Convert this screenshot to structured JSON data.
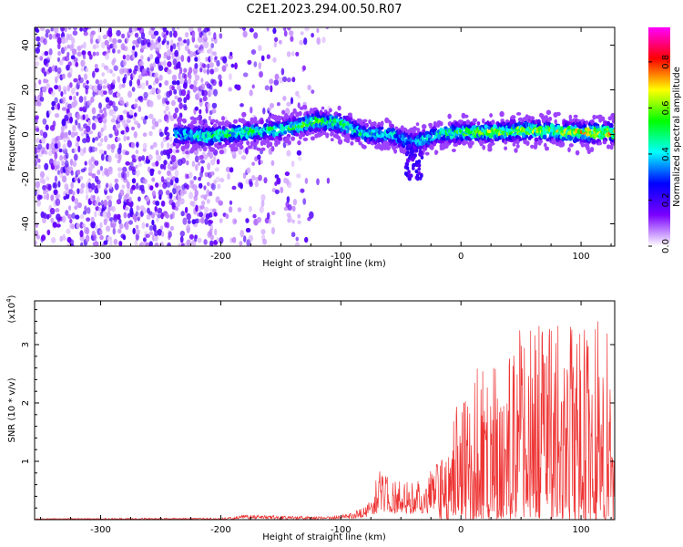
{
  "title": "C2E1.2023.294.00.50.R07",
  "chart_data": [
    {
      "type": "heatmap",
      "xlabel": "Height of straight line (km)",
      "ylabel": "Frequency (Hz)",
      "xlim": [
        -355,
        128
      ],
      "ylim": [
        -50,
        48
      ],
      "x_ticks": [
        -300,
        -200,
        -100,
        0,
        100
      ],
      "y_ticks": [
        -40,
        -20,
        0,
        20,
        40
      ],
      "colorbar": {
        "label": "Normalized spectral amplitude",
        "range": [
          0,
          0.95
        ],
        "ticks": [
          0.0,
          0.2,
          0.4,
          0.6,
          0.8
        ],
        "colors": [
          "#ffffff",
          "#7a00ff",
          "#0000ff",
          "#00ffff",
          "#00ff00",
          "#ffff00",
          "#ff0000",
          "#ff00ff"
        ]
      },
      "ridge": [
        {
          "x": -235,
          "f": 0.0,
          "a": 0.35
        },
        {
          "x": -210,
          "f": -1.0,
          "a": 0.45
        },
        {
          "x": -180,
          "f": 1.0,
          "a": 0.45
        },
        {
          "x": -150,
          "f": 2.0,
          "a": 0.45
        },
        {
          "x": -120,
          "f": 6.0,
          "a": 0.5
        },
        {
          "x": -100,
          "f": 5.0,
          "a": 0.45
        },
        {
          "x": -80,
          "f": 0.0,
          "a": 0.4
        },
        {
          "x": -60,
          "f": 0.0,
          "a": 0.4
        },
        {
          "x": -40,
          "f": -4.0,
          "a": 0.35
        },
        {
          "x": -20,
          "f": 0.0,
          "a": 0.4
        },
        {
          "x": 0,
          "f": 1.0,
          "a": 0.5
        },
        {
          "x": 30,
          "f": 1.0,
          "a": 0.55
        },
        {
          "x": 60,
          "f": 2.0,
          "a": 0.55
        },
        {
          "x": 90,
          "f": 1.0,
          "a": 0.6
        },
        {
          "x": 125,
          "f": 1.0,
          "a": 0.6
        }
      ],
      "noise_regions": [
        {
          "x": [
            -355,
            -205
          ],
          "density": "high"
        },
        {
          "x": [
            -205,
            -130
          ],
          "density": "medium"
        },
        {
          "x": [
            -130,
            -110
          ],
          "density": "low"
        }
      ]
    },
    {
      "type": "line",
      "xlabel": "Height of straight line (km)",
      "ylabel": "SNR (10 * v/v)",
      "scale_label": "(x10",
      "scale_exponent": "4",
      "scale_close": ")",
      "xlim": [
        -355,
        128
      ],
      "ylim": [
        0,
        3.75
      ],
      "x_ticks": [
        -300,
        -200,
        -100,
        0,
        100
      ],
      "y_ticks": [
        1,
        2,
        3
      ],
      "color": "#ee3333",
      "envelope": [
        {
          "x": -355,
          "y": 0.02
        },
        {
          "x": -200,
          "y": 0.03
        },
        {
          "x": -180,
          "y": 0.08
        },
        {
          "x": -110,
          "y": 0.05
        },
        {
          "x": -90,
          "y": 0.12
        },
        {
          "x": -75,
          "y": 0.35
        },
        {
          "x": -68,
          "y": 0.9
        },
        {
          "x": -60,
          "y": 0.7
        },
        {
          "x": -50,
          "y": 0.65
        },
        {
          "x": -30,
          "y": 0.7
        },
        {
          "x": -20,
          "y": 1.0
        },
        {
          "x": -10,
          "y": 1.5
        },
        {
          "x": 0,
          "y": 2.2
        },
        {
          "x": 20,
          "y": 2.8
        },
        {
          "x": 40,
          "y": 3.2
        },
        {
          "x": 60,
          "y": 3.3
        },
        {
          "x": 80,
          "y": 3.4
        },
        {
          "x": 100,
          "y": 3.3
        },
        {
          "x": 118,
          "y": 3.75
        },
        {
          "x": 128,
          "y": 2.5
        }
      ]
    }
  ]
}
